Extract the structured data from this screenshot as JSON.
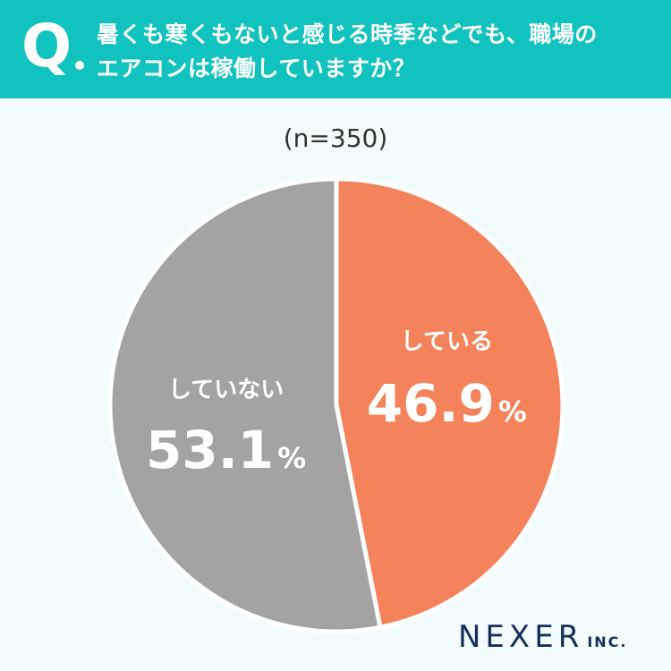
{
  "header": {
    "q_mark": "Q",
    "question_line1": "暑くも寒くもないと感じる時季などでも、職場の",
    "question_line2": "エアコンは稼働していますか？"
  },
  "sample_size": "(n=350)",
  "chart_data": {
    "type": "pie",
    "start_angle_deg": 0,
    "direction": "clockwise",
    "slices": [
      {
        "label": "している",
        "value": 46.9,
        "display": "46.9",
        "unit": "%",
        "color": "#f4825a"
      },
      {
        "label": "していない",
        "value": 53.1,
        "display": "53.1",
        "unit": "%",
        "color": "#a3a3a3"
      }
    ],
    "separator_color": "#ffffff",
    "label_color": "#ffffff"
  },
  "logo": {
    "main": "NEXER",
    "sub": "INC."
  }
}
